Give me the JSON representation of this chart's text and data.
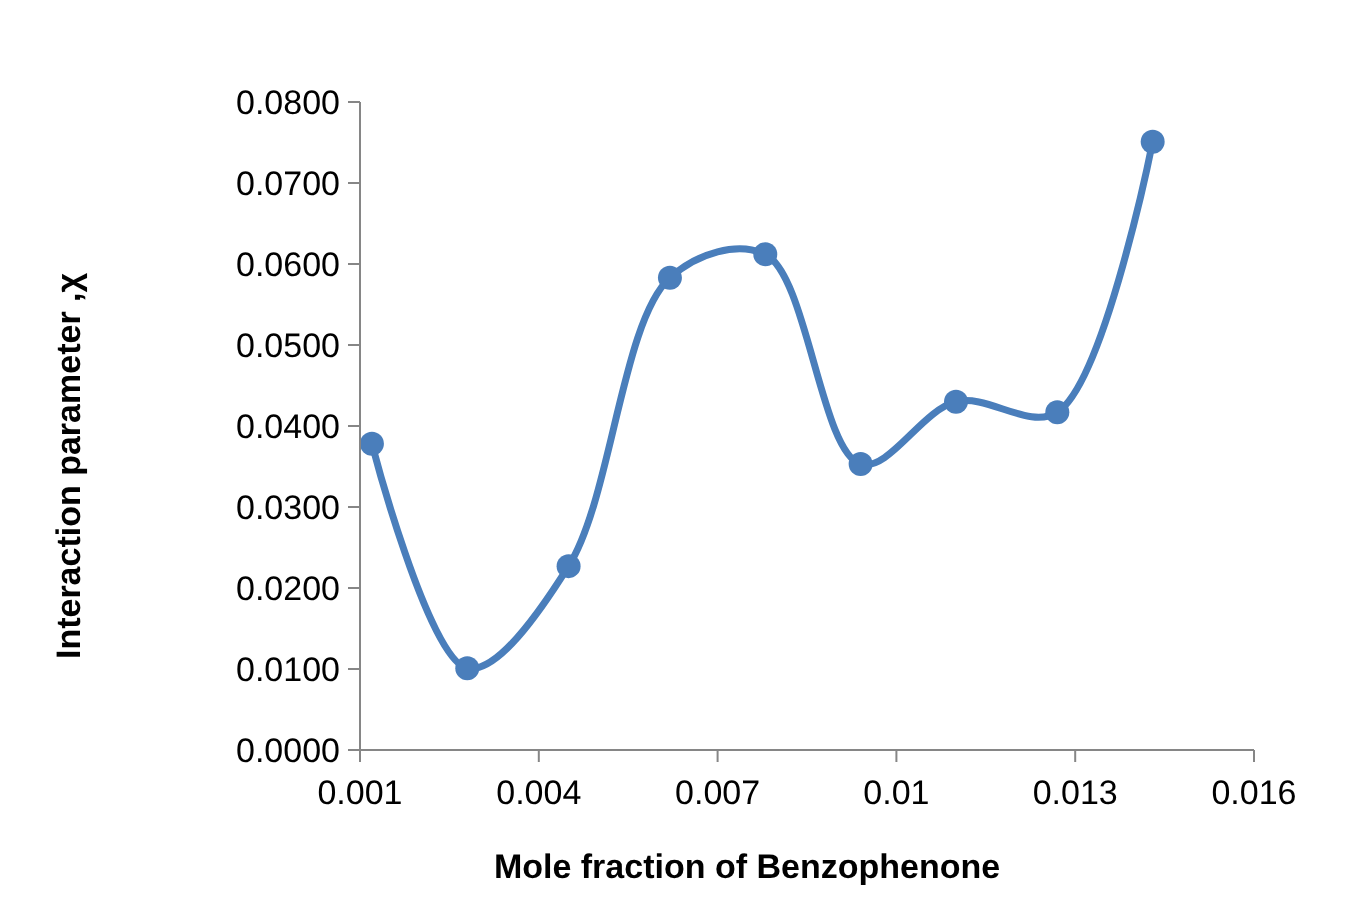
{
  "chart_data": {
    "type": "line",
    "xlabel": "Mole fraction of Benzophenone",
    "ylabel": "Interaction parameter ,χ",
    "x": [
      0.0012,
      0.0028,
      0.0045,
      0.0062,
      0.0078,
      0.0094,
      0.011,
      0.0127,
      0.0143
    ],
    "series": [
      {
        "color": "#4a7ebb",
        "values": [
          0.0378,
          0.0101,
          0.0227,
          0.0583,
          0.0612,
          0.0353,
          0.043,
          0.0417,
          0.0751
        ]
      }
    ],
    "xlim": [
      0.001,
      0.016
    ],
    "xticks": [
      0.001,
      0.004,
      0.007,
      0.01,
      0.013,
      0.016
    ],
    "ylim": [
      0,
      0.08
    ],
    "yticks": [
      {
        "value": 0,
        "label": "0.0000"
      },
      {
        "value": 0.01,
        "label": "0.0100"
      },
      {
        "value": 0.02,
        "label": "0.0200"
      },
      {
        "value": 0.03,
        "label": "0.0300"
      },
      {
        "value": 0.04,
        "label": "0.0400"
      },
      {
        "value": 0.05,
        "label": "0.0500"
      },
      {
        "value": 0.06,
        "label": "0.0600"
      },
      {
        "value": 0.07,
        "label": "0.0700"
      },
      {
        "value": 0.08,
        "label": "0.0800"
      }
    ],
    "marker": "circle",
    "line_style": "solid"
  }
}
